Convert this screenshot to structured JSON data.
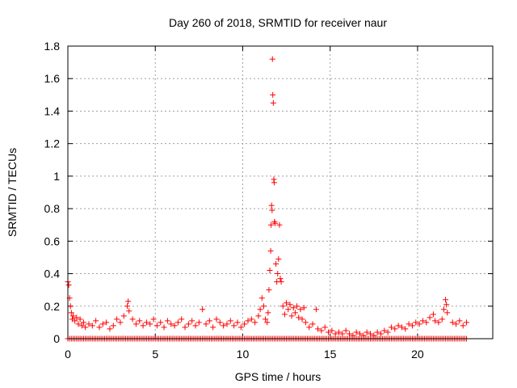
{
  "chart_data": {
    "type": "scatter",
    "title": "Day 260 of 2018, SRMTID for receiver naur",
    "xlabel": "GPS time / hours",
    "ylabel": "SRMTID / TECUs",
    "xlim": [
      0,
      24.3
    ],
    "ylim": [
      0,
      1.8
    ],
    "xticks": [
      "0",
      "5",
      "10",
      "15",
      "20"
    ],
    "yticks": [
      "0",
      "0.2",
      "0.4",
      "0.6",
      "0.8",
      "1",
      "1.2",
      "1.4",
      "1.6",
      "1.8"
    ],
    "grid": true,
    "marker": "+",
    "color": "#ff0000",
    "series": [
      {
        "name": "SRMTID",
        "points": [
          [
            0.0,
            0.35
          ],
          [
            0.05,
            0.33
          ],
          [
            0.1,
            0.25
          ],
          [
            0.15,
            0.2
          ],
          [
            0.2,
            0.16
          ],
          [
            0.25,
            0.12
          ],
          [
            0.3,
            0.14
          ],
          [
            0.4,
            0.11
          ],
          [
            0.5,
            0.13
          ],
          [
            0.6,
            0.09
          ],
          [
            0.7,
            0.12
          ],
          [
            0.8,
            0.08
          ],
          [
            0.9,
            0.1
          ],
          [
            1.0,
            0.07
          ],
          [
            1.2,
            0.09
          ],
          [
            1.4,
            0.08
          ],
          [
            1.6,
            0.11
          ],
          [
            1.8,
            0.07
          ],
          [
            2.0,
            0.09
          ],
          [
            2.2,
            0.1
          ],
          [
            2.4,
            0.06
          ],
          [
            2.6,
            0.08
          ],
          [
            2.8,
            0.12
          ],
          [
            3.0,
            0.1
          ],
          [
            3.2,
            0.14
          ],
          [
            3.4,
            0.2
          ],
          [
            3.45,
            0.23
          ],
          [
            3.5,
            0.17
          ],
          [
            3.7,
            0.12
          ],
          [
            3.9,
            0.09
          ],
          [
            4.1,
            0.11
          ],
          [
            4.3,
            0.08
          ],
          [
            4.5,
            0.1
          ],
          [
            4.7,
            0.09
          ],
          [
            4.9,
            0.12
          ],
          [
            5.1,
            0.08
          ],
          [
            5.3,
            0.1
          ],
          [
            5.5,
            0.07
          ],
          [
            5.7,
            0.11
          ],
          [
            5.9,
            0.09
          ],
          [
            6.1,
            0.08
          ],
          [
            6.3,
            0.1
          ],
          [
            6.5,
            0.12
          ],
          [
            6.7,
            0.07
          ],
          [
            6.9,
            0.09
          ],
          [
            7.1,
            0.11
          ],
          [
            7.3,
            0.08
          ],
          [
            7.5,
            0.1
          ],
          [
            7.7,
            0.18
          ],
          [
            7.9,
            0.09
          ],
          [
            8.1,
            0.11
          ],
          [
            8.3,
            0.07
          ],
          [
            8.5,
            0.12
          ],
          [
            8.7,
            0.1
          ],
          [
            8.9,
            0.08
          ],
          [
            9.1,
            0.09
          ],
          [
            9.3,
            0.11
          ],
          [
            9.5,
            0.08
          ],
          [
            9.7,
            0.1
          ],
          [
            9.9,
            0.07
          ],
          [
            10.1,
            0.09
          ],
          [
            10.3,
            0.11
          ],
          [
            10.5,
            0.12
          ],
          [
            10.7,
            0.1
          ],
          [
            10.9,
            0.14
          ],
          [
            11.0,
            0.18
          ],
          [
            11.1,
            0.25
          ],
          [
            11.2,
            0.2
          ],
          [
            11.3,
            0.12
          ],
          [
            11.4,
            0.1
          ],
          [
            11.45,
            0.16
          ],
          [
            11.5,
            0.3
          ],
          [
            11.55,
            0.42
          ],
          [
            11.6,
            0.54
          ],
          [
            11.62,
            0.7
          ],
          [
            11.65,
            0.82
          ],
          [
            11.68,
            0.79
          ],
          [
            11.7,
            1.72
          ],
          [
            11.72,
            1.5
          ],
          [
            11.75,
            1.45
          ],
          [
            11.78,
            0.98
          ],
          [
            11.8,
            0.96
          ],
          [
            11.82,
            0.72
          ],
          [
            11.85,
            0.71
          ],
          [
            11.9,
            0.46
          ],
          [
            11.95,
            0.35
          ],
          [
            12.0,
            0.4
          ],
          [
            12.05,
            0.49
          ],
          [
            12.1,
            0.7
          ],
          [
            12.15,
            0.37
          ],
          [
            12.2,
            0.35
          ],
          [
            12.3,
            0.2
          ],
          [
            12.4,
            0.15
          ],
          [
            12.5,
            0.22
          ],
          [
            12.6,
            0.18
          ],
          [
            12.7,
            0.21
          ],
          [
            12.8,
            0.14
          ],
          [
            12.9,
            0.19
          ],
          [
            13.0,
            0.16
          ],
          [
            13.1,
            0.2
          ],
          [
            13.2,
            0.13
          ],
          [
            13.3,
            0.18
          ],
          [
            13.4,
            0.12
          ],
          [
            13.5,
            0.19
          ],
          [
            13.6,
            0.1
          ],
          [
            13.8,
            0.07
          ],
          [
            14.0,
            0.09
          ],
          [
            14.2,
            0.18
          ],
          [
            14.3,
            0.06
          ],
          [
            14.5,
            0.05
          ],
          [
            14.7,
            0.07
          ],
          [
            14.9,
            0.04
          ],
          [
            15.1,
            0.05
          ],
          [
            15.3,
            0.03
          ],
          [
            15.5,
            0.04
          ],
          [
            15.7,
            0.03
          ],
          [
            15.9,
            0.05
          ],
          [
            16.1,
            0.03
          ],
          [
            16.3,
            0.02
          ],
          [
            16.5,
            0.04
          ],
          [
            16.7,
            0.03
          ],
          [
            16.9,
            0.02
          ],
          [
            17.1,
            0.04
          ],
          [
            17.3,
            0.03
          ],
          [
            17.5,
            0.02
          ],
          [
            17.7,
            0.04
          ],
          [
            17.9,
            0.03
          ],
          [
            18.1,
            0.05
          ],
          [
            18.3,
            0.04
          ],
          [
            18.5,
            0.07
          ],
          [
            18.7,
            0.06
          ],
          [
            18.9,
            0.08
          ],
          [
            19.1,
            0.07
          ],
          [
            19.3,
            0.06
          ],
          [
            19.5,
            0.09
          ],
          [
            19.7,
            0.08
          ],
          [
            19.9,
            0.1
          ],
          [
            20.1,
            0.09
          ],
          [
            20.3,
            0.11
          ],
          [
            20.5,
            0.1
          ],
          [
            20.7,
            0.13
          ],
          [
            20.9,
            0.15
          ],
          [
            21.0,
            0.11
          ],
          [
            21.2,
            0.1
          ],
          [
            21.4,
            0.12
          ],
          [
            21.5,
            0.18
          ],
          [
            21.6,
            0.24
          ],
          [
            21.65,
            0.21
          ],
          [
            21.7,
            0.16
          ],
          [
            22.0,
            0.1
          ],
          [
            22.2,
            0.09
          ],
          [
            22.4,
            0.11
          ],
          [
            22.6,
            0.08
          ],
          [
            22.8,
            0.1
          ]
        ]
      }
    ],
    "baseline_marks": {
      "y": 0,
      "x_start": 0,
      "x_end": 22.8,
      "x_step": 0.1
    }
  }
}
